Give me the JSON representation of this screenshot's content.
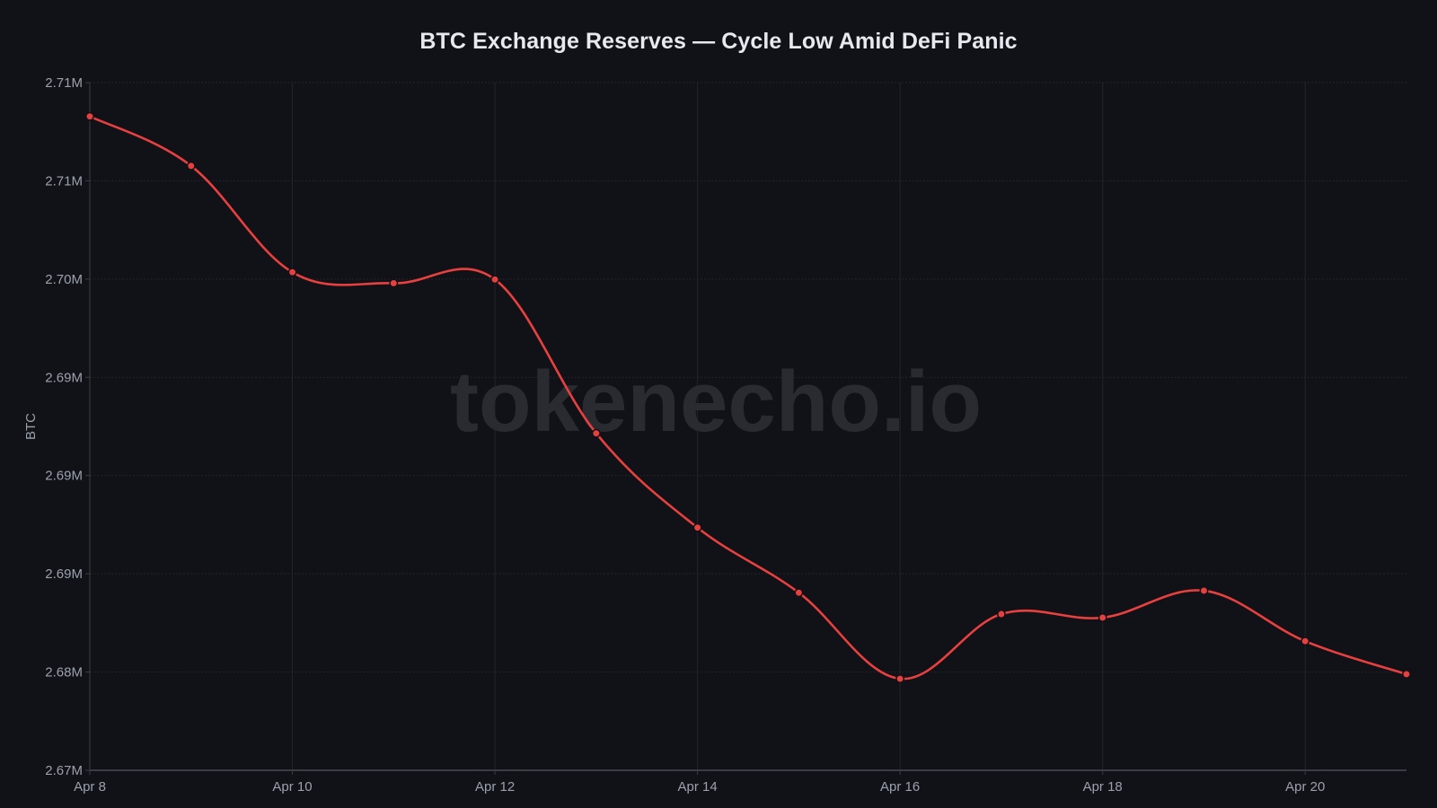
{
  "chart_data": {
    "type": "line",
    "title": "BTC Exchange Reserves — Cycle Low Amid DeFi Panic",
    "xlabel": "",
    "ylabel": "BTC",
    "watermark": "tokenecho.io",
    "x": [
      "Apr 8",
      "Apr 9",
      "Apr 10",
      "Apr 11",
      "Apr 12",
      "Apr 13",
      "Apr 14",
      "Apr 15",
      "Apr 16",
      "Apr 17",
      "Apr 18",
      "Apr 19",
      "Apr 20",
      "Apr 21"
    ],
    "series": [
      {
        "name": "BTC Exchange Reserves",
        "color": "#e8403f",
        "values": [
          2708280,
          2705760,
          2700350,
          2699790,
          2699980,
          2692150,
          2687350,
          2684040,
          2679660,
          2682950,
          2682770,
          2684140,
          2681570,
          2679890
        ]
      }
    ],
    "x_tick_labels": [
      "Apr 8",
      "Apr 10",
      "Apr 12",
      "Apr 14",
      "Apr 16",
      "Apr 18",
      "Apr 20"
    ],
    "x_tick_indices": [
      0,
      2,
      4,
      6,
      8,
      10,
      12
    ],
    "y_ticks": [
      2675000,
      2680000,
      2685000,
      2690000,
      2695000,
      2700000,
      2705000,
      2710000
    ],
    "y_tick_labels": [
      "2.67M",
      "2.68M",
      "2.69M",
      "2.69M",
      "2.69M",
      "2.70M",
      "2.71M",
      "2.71M"
    ],
    "ylim": [
      2675000,
      2710000
    ],
    "grid": true,
    "legend": "none"
  },
  "colors": {
    "background": "#111217",
    "grid": "#23252b",
    "axis": "#3a3d45",
    "line": "#e8403f",
    "text": "#9aa1ad",
    "title": "#e6e9ef",
    "watermark": "#2a2b31"
  }
}
